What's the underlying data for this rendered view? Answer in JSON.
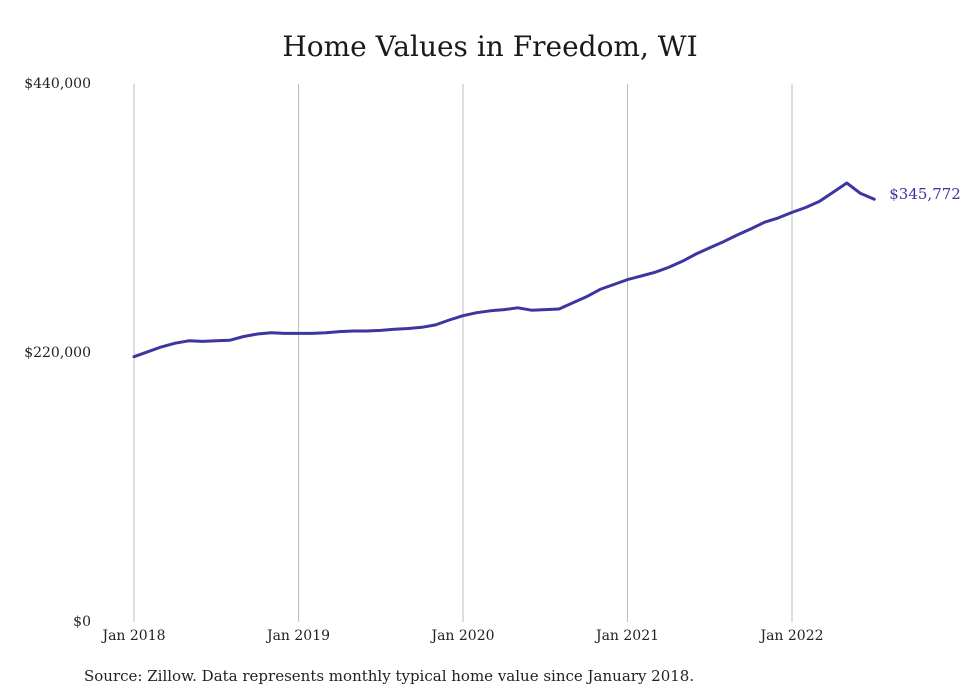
{
  "chart_data": {
    "type": "line",
    "title": "Home Values in Freedom, WI",
    "xlabel": "",
    "ylabel": "",
    "ylim": [
      0,
      440000
    ],
    "y_ticks": [
      {
        "value": 0,
        "label": "$0"
      },
      {
        "value": 220000,
        "label": "$220,000"
      },
      {
        "value": 440000,
        "label": "$440,000"
      }
    ],
    "x_ticks": [
      {
        "date": "2018-01",
        "label": "Jan 2018"
      },
      {
        "date": "2019-01",
        "label": "Jan 2019"
      },
      {
        "date": "2020-01",
        "label": "Jan 2020"
      },
      {
        "date": "2021-01",
        "label": "Jan 2021"
      },
      {
        "date": "2022-01",
        "label": "Jan 2022"
      }
    ],
    "grid": "vertical",
    "series": [
      {
        "color": "#3d35a0",
        "end_label": "$345,772",
        "x": [
          "2018-01",
          "2018-02",
          "2018-03",
          "2018-04",
          "2018-05",
          "2018-06",
          "2018-07",
          "2018-08",
          "2018-09",
          "2018-10",
          "2018-11",
          "2018-12",
          "2019-01",
          "2019-02",
          "2019-03",
          "2019-04",
          "2019-05",
          "2019-06",
          "2019-07",
          "2019-08",
          "2019-09",
          "2019-10",
          "2019-11",
          "2019-12",
          "2020-01",
          "2020-02",
          "2020-03",
          "2020-04",
          "2020-05",
          "2020-06",
          "2020-07",
          "2020-08",
          "2020-09",
          "2020-10",
          "2020-11",
          "2020-12",
          "2021-01",
          "2021-02",
          "2021-03",
          "2021-04",
          "2021-05",
          "2021-06",
          "2021-07",
          "2021-08",
          "2021-09",
          "2021-10",
          "2021-11",
          "2021-12",
          "2022-01",
          "2022-02",
          "2022-03",
          "2022-04",
          "2022-05",
          "2022-06",
          "2022-07"
        ],
        "values": [
          217000,
          221000,
          225000,
          228000,
          230000,
          229500,
          230000,
          230500,
          233500,
          235500,
          236500,
          236000,
          236000,
          236000,
          236500,
          237500,
          238000,
          238000,
          238500,
          239500,
          240000,
          241000,
          243000,
          247000,
          250500,
          253000,
          254500,
          255500,
          257000,
          255000,
          255500,
          256000,
          261000,
          266000,
          272000,
          276000,
          280000,
          283000,
          286000,
          290000,
          295000,
          301000,
          306000,
          311000,
          316500,
          321500,
          327000,
          330500,
          335000,
          339000,
          344000,
          351500,
          359000,
          350500,
          345772
        ]
      }
    ]
  },
  "source": "Source: Zillow. Data represents monthly typical home value since January 2018."
}
